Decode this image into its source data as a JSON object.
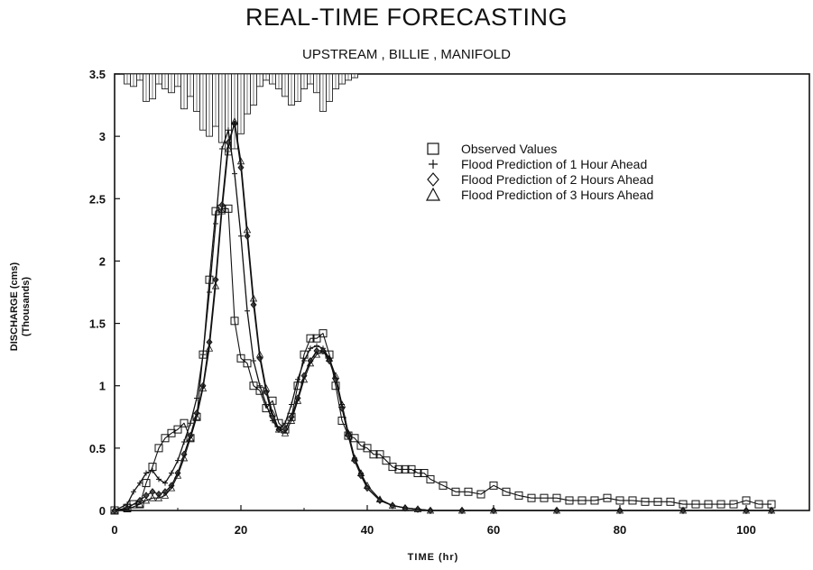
{
  "chart_data": {
    "type": "line",
    "title": "REAL-TIME FORECASTING",
    "subtitle": "UPSTREAM , BILLIE , MANIFOLD",
    "xlabel": "TIME (hr)",
    "ylabel": "DISCHARGE (cms)",
    "ylabel_unit": "(Thousands)",
    "xlim": [
      0,
      110
    ],
    "ylim": [
      0,
      3.5
    ],
    "x_ticks": [
      "0",
      "20",
      "40",
      "60",
      "80",
      "100"
    ],
    "y_ticks": [
      "0",
      "0.5",
      "1",
      "1.5",
      "2",
      "2.5",
      "3",
      "3.5"
    ],
    "legend_position": "top-right",
    "series": [
      {
        "name": "Observed Values",
        "marker": "square",
        "x": [
          0,
          2,
          3,
          4,
          5,
          6,
          7,
          8,
          9,
          10,
          11,
          12,
          13,
          14,
          15,
          16,
          17,
          18,
          19,
          20,
          21,
          22,
          23,
          24,
          25,
          26,
          27,
          28,
          29,
          30,
          31,
          32,
          33,
          34,
          35,
          36,
          37,
          38,
          39,
          40,
          41,
          42,
          43,
          44,
          45,
          46,
          47,
          48,
          49,
          50,
          52,
          54,
          56,
          58,
          60,
          62,
          64,
          66,
          68,
          70,
          72,
          74,
          76,
          78,
          80,
          82,
          84,
          86,
          88,
          90,
          92,
          94,
          96,
          98,
          100,
          102,
          104
        ],
        "y": [
          0,
          0.02,
          0.05,
          0.05,
          0.22,
          0.35,
          0.5,
          0.58,
          0.62,
          0.65,
          0.7,
          0.58,
          0.75,
          1.25,
          1.85,
          2.4,
          2.42,
          2.42,
          1.52,
          1.22,
          1.18,
          1.0,
          0.96,
          0.82,
          0.88,
          0.7,
          0.65,
          0.75,
          1.0,
          1.25,
          1.38,
          1.38,
          1.42,
          1.25,
          1.0,
          0.72,
          0.6,
          0.58,
          0.52,
          0.5,
          0.45,
          0.45,
          0.4,
          0.35,
          0.33,
          0.33,
          0.33,
          0.3,
          0.3,
          0.25,
          0.2,
          0.15,
          0.15,
          0.13,
          0.2,
          0.15,
          0.12,
          0.1,
          0.1,
          0.1,
          0.08,
          0.08,
          0.08,
          0.1,
          0.08,
          0.08,
          0.07,
          0.07,
          0.07,
          0.05,
          0.05,
          0.05,
          0.05,
          0.05,
          0.08,
          0.05,
          0.05
        ]
      },
      {
        "name": "Flood Prediction of 1 Hour Ahead",
        "marker": "plus",
        "x": [
          0,
          2,
          3,
          4,
          5,
          6,
          7,
          8,
          9,
          10,
          11,
          12,
          13,
          14,
          15,
          16,
          17,
          18,
          19,
          20,
          21,
          22,
          23,
          24,
          25,
          26,
          27,
          28,
          29,
          30,
          31,
          32,
          33,
          34,
          35,
          36,
          37,
          38,
          39,
          40,
          42,
          44,
          46,
          48,
          50,
          55,
          60,
          70,
          80,
          90,
          100,
          104
        ],
        "y": [
          0,
          0.05,
          0.15,
          0.22,
          0.3,
          0.32,
          0.25,
          0.22,
          0.3,
          0.4,
          0.55,
          0.7,
          0.9,
          1.25,
          1.75,
          2.3,
          2.9,
          3.05,
          2.7,
          2.2,
          1.6,
          1.2,
          1.0,
          0.85,
          0.72,
          0.65,
          0.7,
          0.85,
          1.05,
          1.2,
          1.3,
          1.32,
          1.3,
          1.22,
          1.05,
          0.85,
          0.62,
          0.42,
          0.3,
          0.18,
          0.08,
          0.04,
          0.02,
          0.01,
          0,
          0,
          0,
          0,
          0,
          0,
          0,
          0
        ]
      },
      {
        "name": "Flood Prediction of 2 Hours Ahead",
        "marker": "diamond",
        "x": [
          0,
          2,
          4,
          5,
          6,
          7,
          8,
          9,
          10,
          11,
          12,
          13,
          14,
          15,
          16,
          17,
          18,
          19,
          20,
          21,
          22,
          23,
          24,
          25,
          26,
          27,
          28,
          29,
          30,
          31,
          32,
          33,
          34,
          35,
          36,
          37,
          38,
          39,
          40,
          42,
          44,
          46,
          48,
          50,
          55,
          60,
          70,
          80,
          90,
          100,
          104
        ],
        "y": [
          0,
          0.02,
          0.08,
          0.12,
          0.15,
          0.13,
          0.15,
          0.2,
          0.3,
          0.45,
          0.6,
          0.78,
          1.0,
          1.35,
          1.85,
          2.45,
          2.95,
          3.1,
          2.75,
          2.2,
          1.65,
          1.22,
          0.95,
          0.75,
          0.65,
          0.65,
          0.75,
          0.9,
          1.08,
          1.2,
          1.28,
          1.28,
          1.2,
          1.05,
          0.82,
          0.6,
          0.4,
          0.28,
          0.18,
          0.08,
          0.04,
          0.02,
          0.01,
          0,
          0,
          0,
          0,
          0,
          0,
          0,
          0
        ]
      },
      {
        "name": "Flood Prediction of 3 Hours Ahead",
        "marker": "triangle",
        "x": [
          0,
          2,
          4,
          5,
          6,
          7,
          8,
          9,
          10,
          11,
          12,
          13,
          14,
          15,
          16,
          17,
          18,
          19,
          20,
          21,
          22,
          23,
          24,
          25,
          26,
          27,
          28,
          29,
          30,
          31,
          32,
          33,
          34,
          35,
          36,
          37,
          38,
          39,
          40,
          42,
          44,
          46,
          48,
          50,
          55,
          60,
          70,
          80,
          90,
          100,
          104
        ],
        "y": [
          0,
          0.01,
          0.05,
          0.08,
          0.1,
          0.1,
          0.12,
          0.18,
          0.28,
          0.42,
          0.58,
          0.75,
          0.98,
          1.3,
          1.8,
          2.4,
          2.9,
          3.12,
          2.8,
          2.25,
          1.7,
          1.25,
          0.98,
          0.78,
          0.65,
          0.62,
          0.72,
          0.88,
          1.05,
          1.18,
          1.25,
          1.28,
          1.22,
          1.08,
          0.85,
          0.62,
          0.42,
          0.3,
          0.2,
          0.09,
          0.04,
          0.02,
          0.01,
          0,
          0,
          0,
          0,
          0,
          0,
          0,
          0
        ]
      }
    ]
  },
  "rainfall_bars": {
    "x": [
      2,
      3,
      4,
      5,
      6,
      7,
      8,
      9,
      10,
      11,
      12,
      13,
      14,
      15,
      16,
      17,
      18,
      19,
      20,
      21,
      22,
      23,
      24,
      25,
      26,
      27,
      28,
      29,
      30,
      31,
      32,
      33,
      34,
      35,
      36,
      37,
      38
    ],
    "depth": [
      0.08,
      0.1,
      0.05,
      0.22,
      0.2,
      0.08,
      0.12,
      0.15,
      0.1,
      0.28,
      0.18,
      0.3,
      0.45,
      0.5,
      0.42,
      0.55,
      0.65,
      0.6,
      0.48,
      0.32,
      0.25,
      0.1,
      0.05,
      0.08,
      0.12,
      0.18,
      0.25,
      0.22,
      0.12,
      0.08,
      0.15,
      0.3,
      0.22,
      0.12,
      0.08,
      0.05,
      0.03
    ]
  }
}
